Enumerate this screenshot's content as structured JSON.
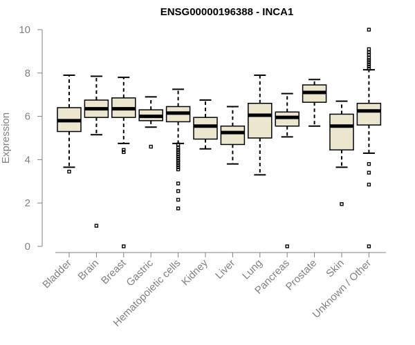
{
  "chart_data": {
    "type": "boxplot",
    "title": "ENSG00000196388 - INCA1",
    "xlabel": "",
    "ylabel": "Expression",
    "ylim": [
      0,
      10
    ],
    "yticks": [
      0,
      2,
      4,
      6,
      8,
      10
    ],
    "box_color": "#ede6cf",
    "categories": [
      "Bladder",
      "Brain",
      "Breast",
      "Gastric",
      "Hematopoietic cells",
      "Kidney",
      "Liver",
      "Lung",
      "Pancreas",
      "Prostate",
      "Skin",
      "Unknown / Other"
    ],
    "boxes": [
      {
        "whisker_low": 3.65,
        "q1": 5.3,
        "median": 5.8,
        "q3": 6.4,
        "whisker_high": 7.9,
        "outliers": [
          3.45
        ]
      },
      {
        "whisker_low": 5.15,
        "q1": 5.95,
        "median": 6.35,
        "q3": 6.75,
        "whisker_high": 7.85,
        "outliers": [
          0.95
        ]
      },
      {
        "whisker_low": 4.75,
        "q1": 5.95,
        "median": 6.35,
        "q3": 6.85,
        "whisker_high": 7.8,
        "outliers": [
          4.35,
          4.45,
          0.0
        ]
      },
      {
        "whisker_low": 5.5,
        "q1": 5.8,
        "median": 6.0,
        "q3": 6.3,
        "whisker_high": 6.9,
        "outliers": [
          4.6
        ]
      },
      {
        "whisker_low": 4.75,
        "q1": 5.75,
        "median": 6.15,
        "q3": 6.45,
        "whisker_high": 7.25,
        "outliers": [
          4.7,
          4.55,
          4.45,
          4.35,
          4.25,
          4.15,
          4.05,
          3.95,
          3.85,
          3.75,
          3.65,
          3.55,
          2.9,
          2.55,
          2.15,
          1.75
        ]
      },
      {
        "whisker_low": 4.5,
        "q1": 4.95,
        "median": 5.55,
        "q3": 5.95,
        "whisker_high": 6.75,
        "outliers": []
      },
      {
        "whisker_low": 3.8,
        "q1": 4.7,
        "median": 5.25,
        "q3": 5.55,
        "whisker_high": 6.45,
        "outliers": []
      },
      {
        "whisker_low": 3.3,
        "q1": 5.0,
        "median": 6.05,
        "q3": 6.6,
        "whisker_high": 7.9,
        "outliers": []
      },
      {
        "whisker_low": 5.05,
        "q1": 5.55,
        "median": 5.95,
        "q3": 6.2,
        "whisker_high": 7.05,
        "outliers": [
          0.0
        ]
      },
      {
        "whisker_low": 5.55,
        "q1": 6.65,
        "median": 7.1,
        "q3": 7.45,
        "whisker_high": 7.7,
        "outliers": []
      },
      {
        "whisker_low": 3.65,
        "q1": 4.45,
        "median": 5.55,
        "q3": 6.1,
        "whisker_high": 6.7,
        "outliers": [
          1.95
        ]
      },
      {
        "whisker_low": 4.3,
        "q1": 5.6,
        "median": 6.25,
        "q3": 6.6,
        "whisker_high": 8.15,
        "outliers": [
          10.0,
          9.1,
          8.95,
          8.85,
          8.7,
          8.6,
          8.5,
          8.4,
          8.3,
          8.2,
          3.8,
          3.4,
          2.85,
          0.0
        ]
      }
    ]
  }
}
